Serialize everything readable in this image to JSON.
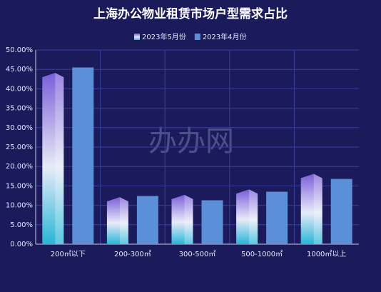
{
  "chart_data": {
    "type": "bar",
    "title": "上海办公物业租赁市场户型需求占比",
    "watermark": "办办网",
    "categories": [
      "200㎡以下",
      "200-300㎡",
      "300-500㎡",
      "500-1000㎡",
      "1000㎡以上"
    ],
    "series": [
      {
        "name": "2023年5月份",
        "color": "#7c6ee0",
        "values": [
          43,
          11,
          11.6,
          13,
          17
        ]
      },
      {
        "name": "2023年4月份",
        "color": "#5b8fd8",
        "values": [
          45.5,
          12.4,
          11.3,
          13.5,
          16.8
        ]
      }
    ],
    "ylim": [
      0,
      50
    ],
    "yticks": [
      {
        "value": 0,
        "label": "0.00%"
      },
      {
        "value": 5,
        "label": "5.00%"
      },
      {
        "value": 10,
        "label": "10.00%"
      },
      {
        "value": 15,
        "label": "15.00%"
      },
      {
        "value": 20,
        "label": "20.00%"
      },
      {
        "value": 25,
        "label": "25.00%"
      },
      {
        "value": 30,
        "label": "30.00%"
      },
      {
        "value": 35,
        "label": "35.00%"
      },
      {
        "value": 40,
        "label": "40.00%"
      },
      {
        "value": 45,
        "label": "45.00%"
      },
      {
        "value": 50,
        "label": "50.00%"
      }
    ],
    "grid": true
  }
}
